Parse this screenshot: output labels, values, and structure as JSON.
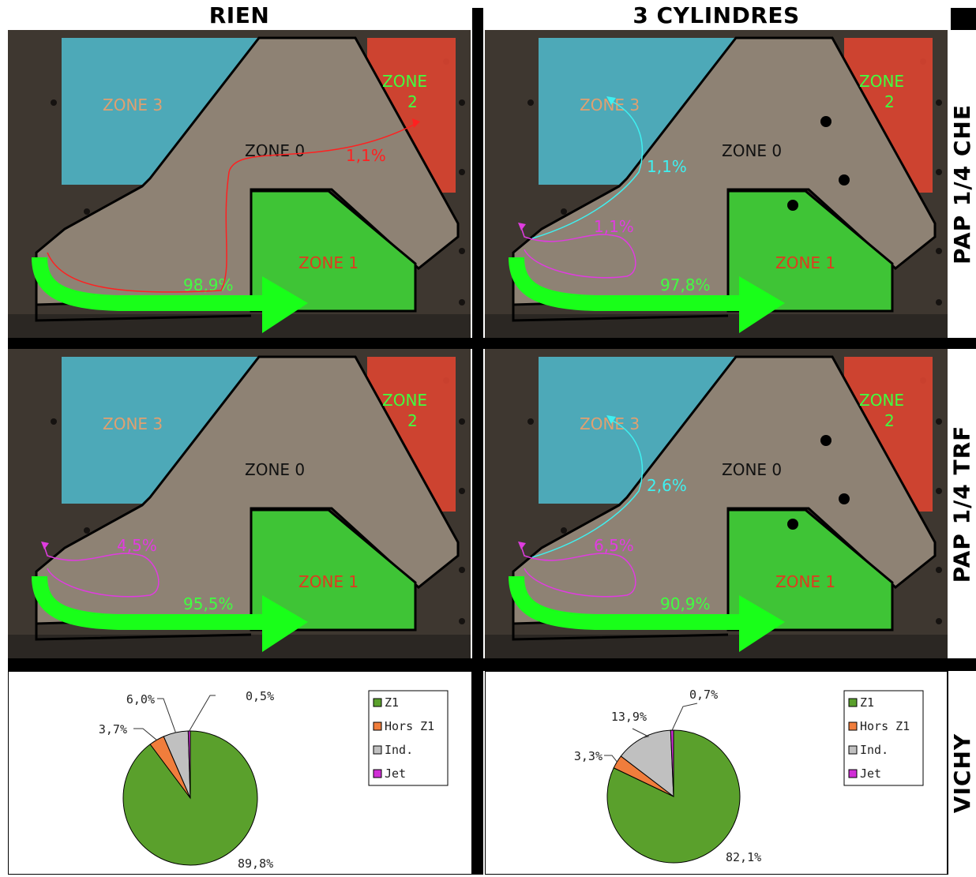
{
  "columns": {
    "left": "RIEN",
    "right": "3 CYLINDRES"
  },
  "rows": {
    "r1": "PAP 1/4 CHE",
    "r2": "PAP 1/4 TRF",
    "r3": "VICHY"
  },
  "zones": {
    "z0": "ZONE 0",
    "z1": "ZONE 1",
    "z2a": "ZONE",
    "z2b": "2",
    "z3": "ZONE 3"
  },
  "panels": {
    "p11": {
      "main": "98,9%",
      "red": "1,1%"
    },
    "p12": {
      "main": "97,8%",
      "cyan": "1,1%",
      "magenta": "1,1%"
    },
    "p21": {
      "main": "95,5%",
      "magenta": "4,5%"
    },
    "p22": {
      "main": "90,9%",
      "cyan": "2,6%",
      "magenta": "6,5%"
    }
  },
  "legend": {
    "z1": "Z1",
    "hors": "Hors Z1",
    "ind": "Ind.",
    "jet": "Jet"
  },
  "colors": {
    "z1": "#5aa02c",
    "hors": "#f07d3c",
    "ind": "#c0c0c0",
    "jet": "#d02ed6",
    "arrow": "#19ff19",
    "cyan": "#3ff0f0",
    "magenta": "#e03ce0",
    "red": "#ff2020"
  },
  "chart_data": [
    {
      "type": "pie",
      "labels": [
        "Z1",
        "Hors Z1",
        "Ind.",
        "Jet"
      ],
      "values": [
        89.8,
        3.7,
        6.0,
        0.5
      ],
      "value_labels": [
        "89,8%",
        "3,7%",
        "6,0%",
        "0,5%"
      ]
    },
    {
      "type": "pie",
      "labels": [
        "Z1",
        "Hors Z1",
        "Ind.",
        "Jet"
      ],
      "values": [
        82.1,
        3.3,
        13.9,
        0.7
      ],
      "value_labels": [
        "82,1%",
        "3,3%",
        "13,9%",
        "0,7%"
      ]
    }
  ]
}
